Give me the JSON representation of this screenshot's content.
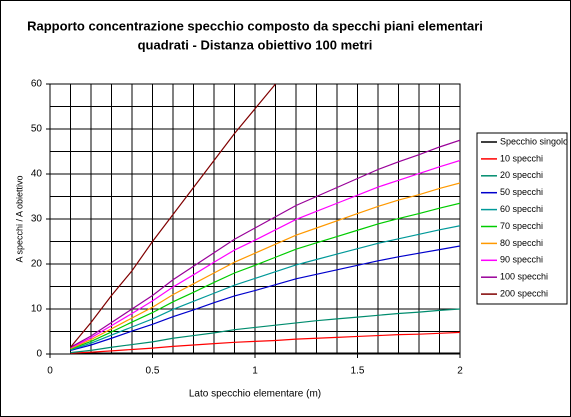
{
  "chart_data": {
    "type": "line",
    "title": [
      "Rapporto concentrazione specchio composto da specchi piani elementari",
      "quadrati  - Distanza obiettivo  100 metri"
    ],
    "x_label": "Lato specchio elementare (m)",
    "y_label": "A specchi / A obiettivo",
    "x": [
      0.1,
      0.2,
      0.3,
      0.4,
      0.5,
      0.6,
      0.7,
      0.8,
      0.9,
      1.0,
      1.1,
      1.2,
      1.3,
      1.4,
      1.5,
      1.6,
      1.7,
      1.8,
      1.9,
      2.0
    ],
    "xlim": [
      0,
      2
    ],
    "xticks": [
      0,
      0.5,
      1,
      1.5,
      2
    ],
    "ylim": [
      0,
      60
    ],
    "yticks": [
      0,
      10,
      20,
      30,
      40,
      50,
      60
    ],
    "xgrid_step": 0.1,
    "ygrid_step": 5,
    "grid": true,
    "legend": "right",
    "series": [
      {
        "name": "Specchio singolo",
        "color": "#000000",
        "values": [
          0.2,
          0.2,
          0.2,
          0.2,
          0.2,
          0.2,
          0.2,
          0.2,
          0.2,
          0.2,
          0.2,
          0.2,
          0.2,
          0.2,
          0.2,
          0.2,
          0.2,
          0.2,
          0.2,
          0.2
        ]
      },
      {
        "name": "10 specchi",
        "color": "#ff0000",
        "values": [
          0.2,
          0.4,
          0.7,
          1,
          1.3,
          1.7,
          2,
          2.3,
          2.6,
          2.8,
          3,
          3.3,
          3.5,
          3.7,
          3.9,
          4.1,
          4.3,
          4.4,
          4.6,
          4.8
        ]
      },
      {
        "name": "20 specchi",
        "color": "#008c6e",
        "values": [
          0.3,
          0.8,
          1.5,
          2.1,
          2.7,
          3.5,
          4.1,
          4.7,
          5.4,
          5.9,
          6.4,
          6.9,
          7.4,
          7.8,
          8.2,
          8.6,
          9,
          9.3,
          9.7,
          10
        ]
      },
      {
        "name": "50 specchi",
        "color": "#0000cc",
        "values": [
          0.8,
          2,
          3.5,
          5.1,
          6.6,
          8.3,
          9.8,
          11.4,
          12.9,
          14.1,
          15.4,
          16.7,
          17.7,
          18.7,
          19.7,
          20.7,
          21.6,
          22.4,
          23.2,
          24
        ]
      },
      {
        "name": "60 specchi",
        "color": "#009999",
        "values": [
          0.9,
          2.4,
          4.2,
          6,
          7.8,
          9.9,
          11.7,
          13.5,
          15.3,
          16.8,
          18.3,
          19.8,
          21,
          22.2,
          23.4,
          24.6,
          25.6,
          26.6,
          27.6,
          28.5
        ]
      },
      {
        "name": "70 specchi",
        "color": "#00cc00",
        "values": [
          1.1,
          2.8,
          4.9,
          7.1,
          9.2,
          11.6,
          13.7,
          15.9,
          18,
          19.7,
          21.5,
          23.3,
          24.7,
          26.1,
          27.5,
          28.9,
          30.1,
          31.2,
          32.4,
          33.5
        ]
      },
      {
        "name": "80 specchi",
        "color": "#ff9900",
        "values": [
          1.2,
          3.2,
          5.6,
          8,
          10.4,
          13.2,
          15.6,
          18,
          20.4,
          22.4,
          24.4,
          26.4,
          28,
          29.6,
          31.2,
          32.8,
          34.2,
          35.4,
          36.8,
          38
        ]
      },
      {
        "name": "90 specchi",
        "color": "#ff00ff",
        "values": [
          1.4,
          3.6,
          6.3,
          9,
          11.8,
          14.9,
          17.6,
          20.4,
          23.1,
          25.3,
          27.6,
          29.9,
          31.7,
          33.5,
          35.3,
          37.1,
          38.6,
          40.1,
          41.6,
          43
        ]
      },
      {
        "name": "100 specchi",
        "color": "#990099",
        "values": [
          1.5,
          4,
          7,
          10,
          13,
          16.5,
          19.5,
          22.5,
          25.5,
          28,
          30.5,
          33,
          35,
          37,
          39,
          41,
          42.7,
          44.3,
          46,
          47.5
        ]
      },
      {
        "name": "200 specchi",
        "color": "#800000",
        "values": [
          1.5,
          7,
          13,
          18.5,
          25,
          31,
          37,
          43,
          49,
          54.5,
          60,
          null,
          null,
          null,
          null,
          null,
          null,
          null,
          null,
          null
        ]
      }
    ]
  }
}
